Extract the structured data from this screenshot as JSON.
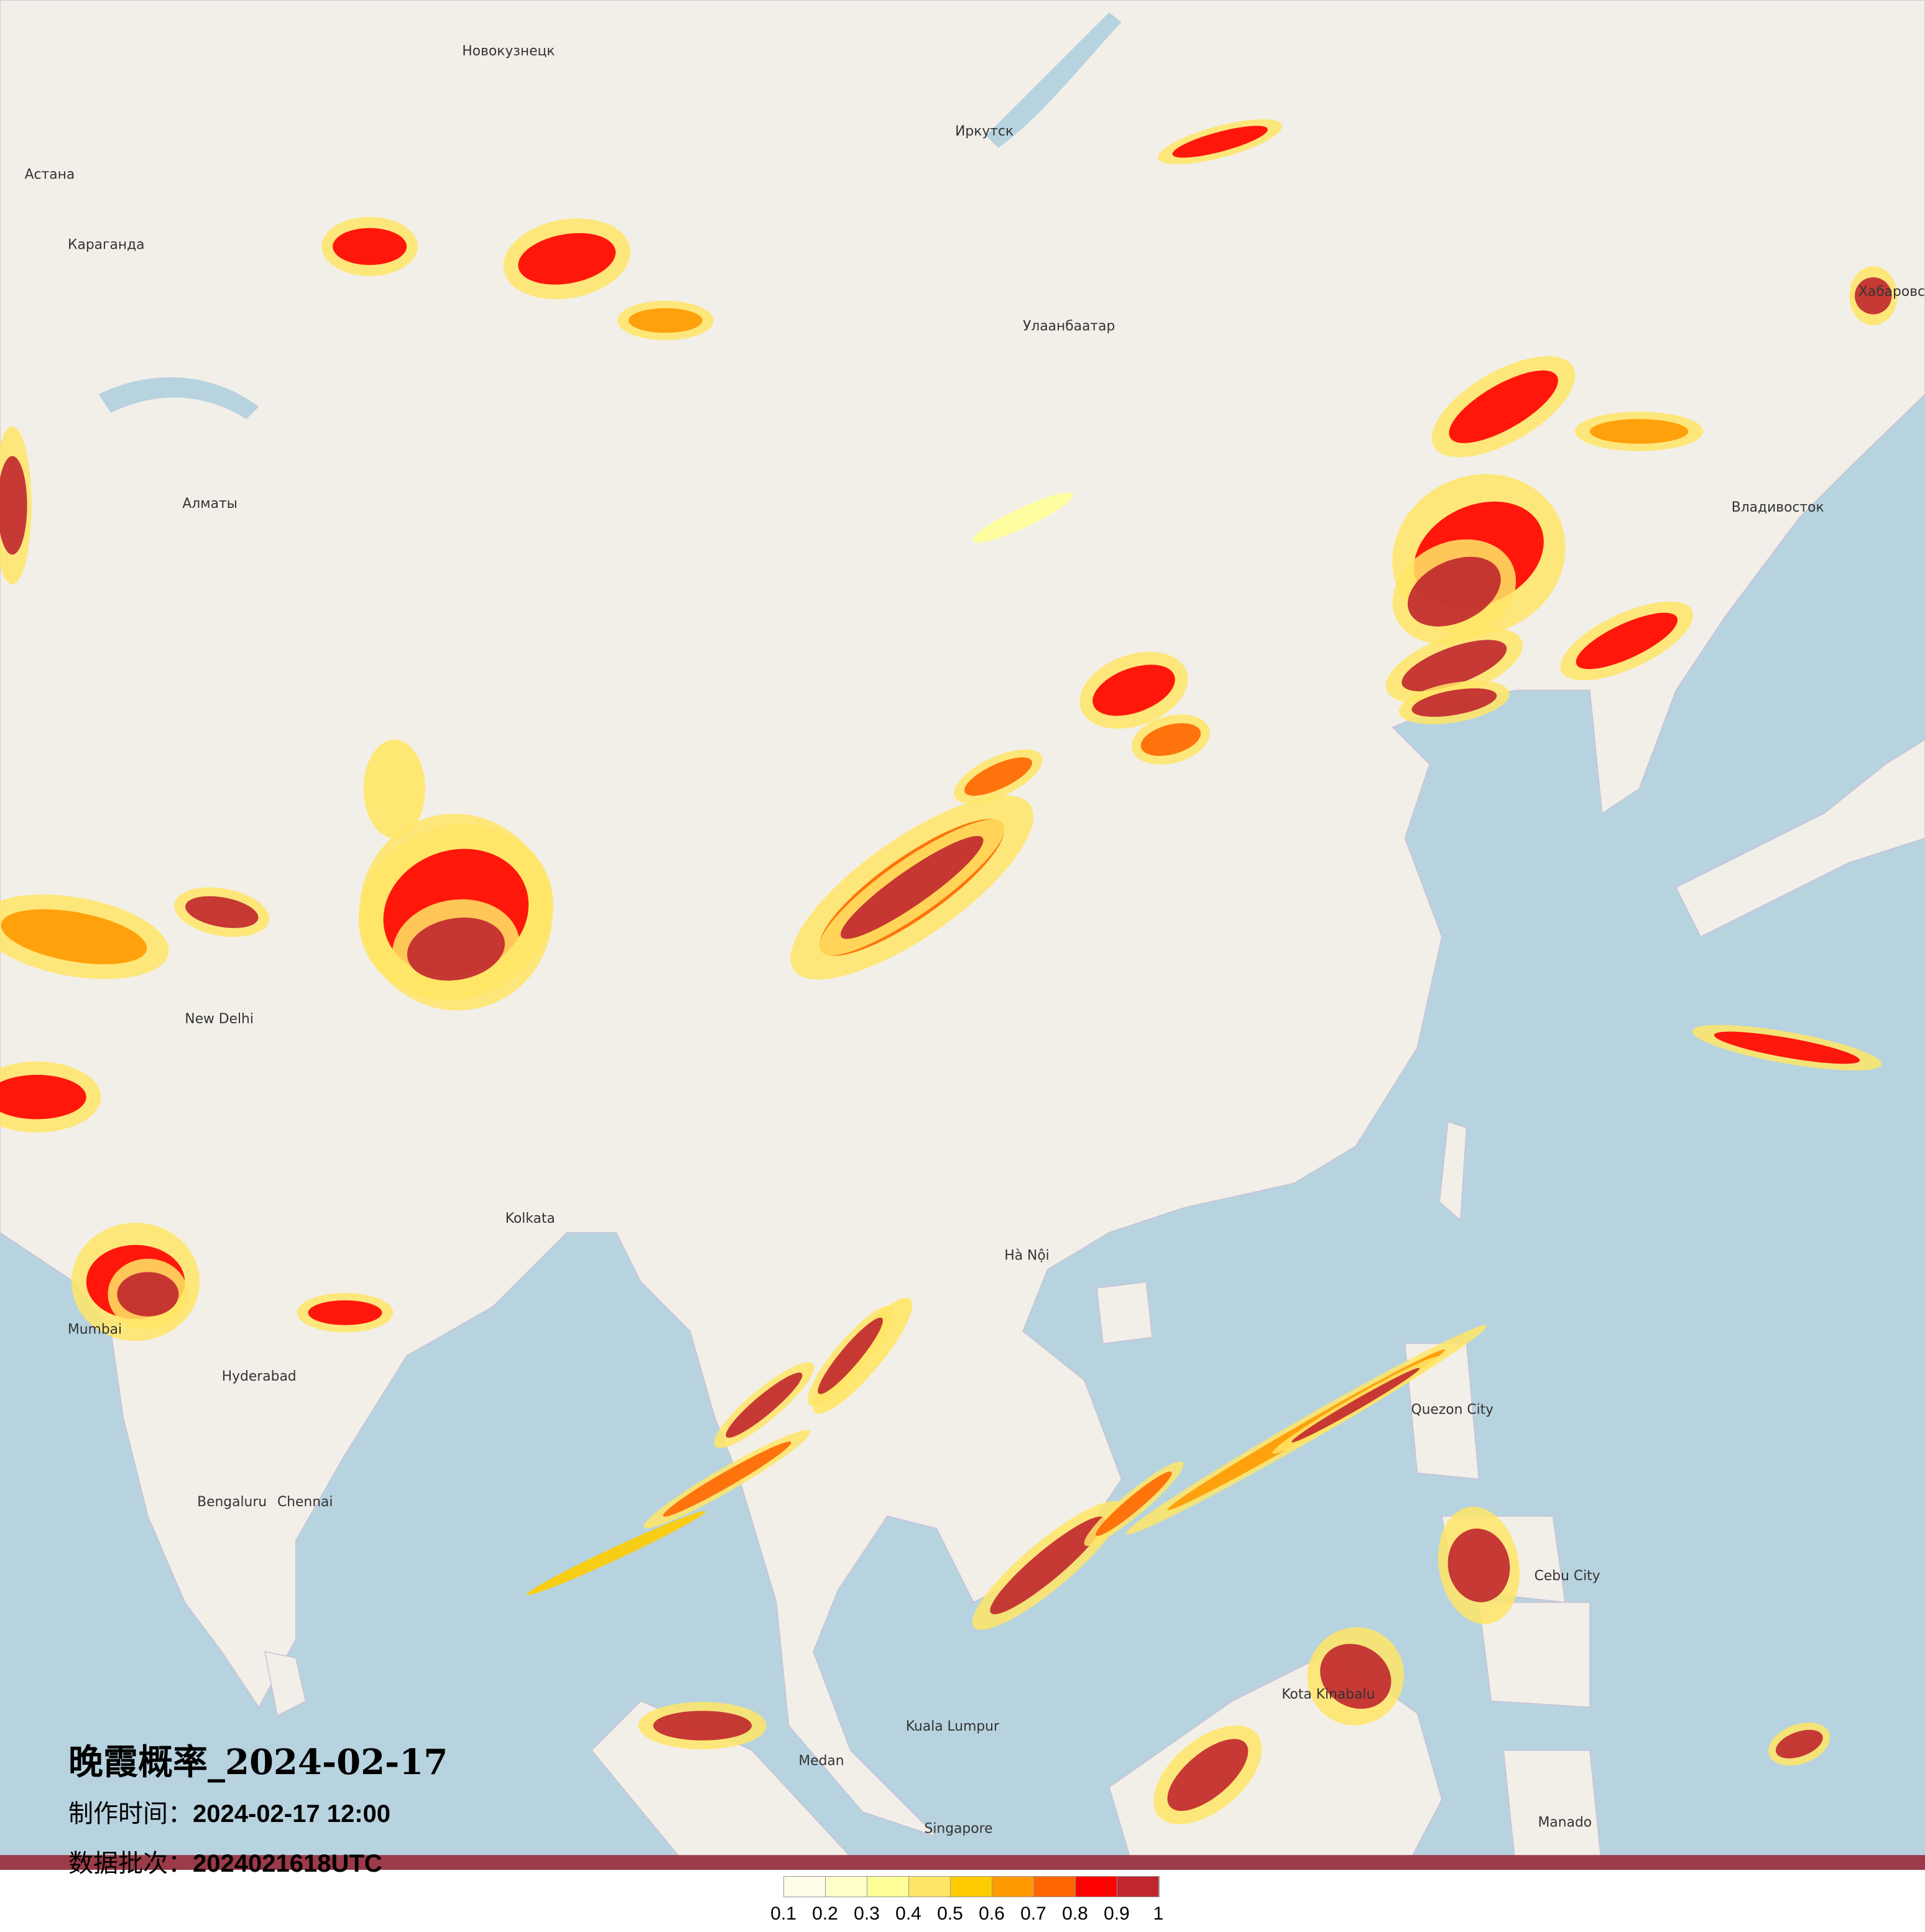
{
  "title": "晚霞概率_2024-02-17",
  "made_time": {
    "label": "制作时间：",
    "value": "2024-02-17 12:00"
  },
  "data_batch": {
    "label": "数据批次：",
    "value": "2024021618UTC"
  },
  "legend": {
    "labels": [
      "0.1",
      "0.2",
      "0.3",
      "0.4",
      "0.5",
      "0.6",
      "0.7",
      "0.8",
      "0.9",
      "1"
    ],
    "colors": [
      "#fffde8",
      "#ffffcc",
      "#ffff99",
      "#ffe566",
      "#ffcc00",
      "#ff9900",
      "#ff6600",
      "#ff0000",
      "#c0262d"
    ]
  },
  "map": {
    "land_color": "#f2efe9",
    "sea_color": "#b7d3df",
    "cities": [
      "Астана",
      "Караганда",
      "Алматы",
      "Новокузнецк",
      "Иркутск",
      "Улаанбаатар",
      "Хабаровск",
      "Владивосток",
      "New Delhi",
      "Kolkata",
      "Mumbai",
      "Hyderabad",
      "Bengaluru",
      "Chennai",
      "Hà Nội",
      "Singapore",
      "Kuala Lumpur",
      "Quezon City",
      "Cebu City",
      "Manado",
      "Kota Kinabalu",
      "Medan"
    ]
  }
}
